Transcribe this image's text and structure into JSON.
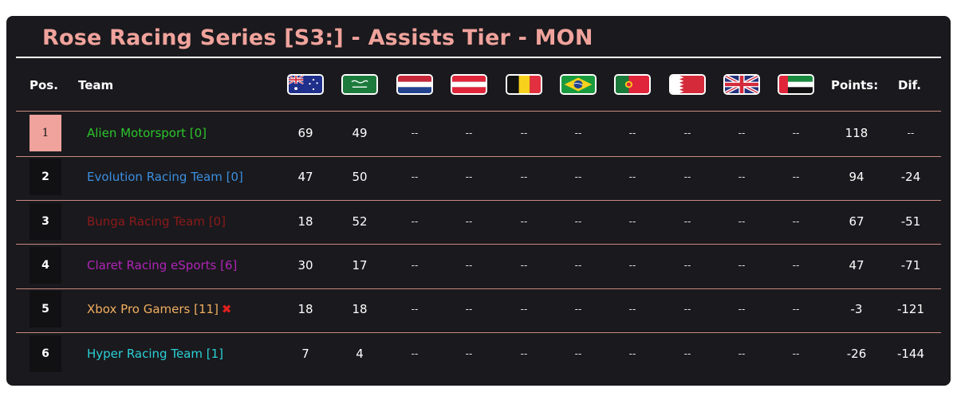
{
  "title": "Rose Racing Series [S3:] - Assists Tier - MON",
  "headers": {
    "pos": "Pos.",
    "team": "Team",
    "points": "Points:",
    "dif": "Dif."
  },
  "races": [
    "australia-flag",
    "saudi-arabia-flag",
    "netherlands-flag",
    "austria-flag",
    "belgium-flag",
    "brazil-flag",
    "portugal-flag",
    "bahrain-flag",
    "united-kingdom-flag",
    "uae-flag"
  ],
  "rows": [
    {
      "pos": "1",
      "team": "Alien Motorsport [0]",
      "color": "#2cc52c",
      "r": [
        "69",
        "49",
        "--",
        "--",
        "--",
        "--",
        "--",
        "--",
        "--",
        "--"
      ],
      "points": "118",
      "dif": "--",
      "flag": ""
    },
    {
      "pos": "2",
      "team": "Evolution Racing Team [0]",
      "color": "#3b8fe0",
      "r": [
        "47",
        "50",
        "--",
        "--",
        "--",
        "--",
        "--",
        "--",
        "--",
        "--"
      ],
      "points": "94",
      "dif": "-24",
      "flag": ""
    },
    {
      "pos": "3",
      "team": "Bunga Racing Team [0]",
      "color": "#8c1a1a",
      "r": [
        "18",
        "52",
        "--",
        "--",
        "--",
        "--",
        "--",
        "--",
        "--",
        "--"
      ],
      "points": "67",
      "dif": "-51",
      "flag": ""
    },
    {
      "pos": "4",
      "team": "Claret Racing eSports [6]",
      "color": "#b024b8",
      "r": [
        "30",
        "17",
        "--",
        "--",
        "--",
        "--",
        "--",
        "--",
        "--",
        "--"
      ],
      "points": "47",
      "dif": "-71",
      "flag": ""
    },
    {
      "pos": "5",
      "team": "Xbox Pro Gamers [11]",
      "color": "#f0ae60",
      "r": [
        "18",
        "18",
        "--",
        "--",
        "--",
        "--",
        "--",
        "--",
        "--",
        "--"
      ],
      "points": "-3",
      "dif": "-121",
      "flag": "✖"
    },
    {
      "pos": "6",
      "team": "Hyper Racing Team [1]",
      "color": "#2ad0d6",
      "r": [
        "7",
        "4",
        "--",
        "--",
        "--",
        "--",
        "--",
        "--",
        "--",
        "--"
      ],
      "points": "-26",
      "dif": "-144",
      "flag": ""
    }
  ]
}
